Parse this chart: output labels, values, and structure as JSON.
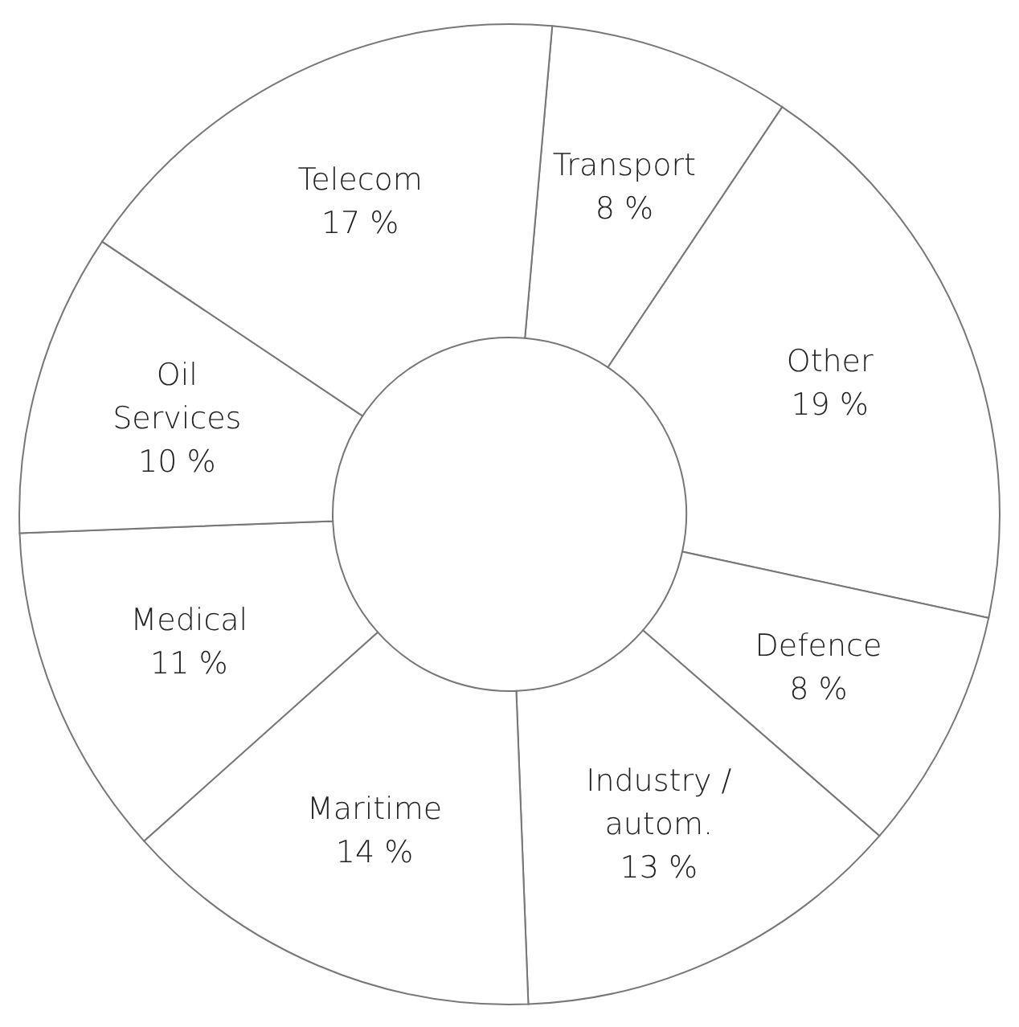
{
  "chart_data": {
    "type": "donut",
    "categories": [
      "Transport",
      "Other",
      "Defence",
      "Industry /\nautom.",
      "Maritime",
      "Medical",
      "Oil\nServices",
      "Telecom"
    ],
    "values": [
      8,
      19,
      8,
      13,
      14,
      11,
      10,
      17
    ],
    "value_labels": [
      "8 %",
      "19 %",
      "8 %",
      "13 %",
      "14 %",
      "11 %",
      "10 %",
      "17 %"
    ],
    "colors": [
      "#ffffff",
      "#ffffff",
      "#ffffff",
      "#ffffff",
      "#ffffff",
      "#ffffff",
      "#ffffff",
      "#ffffff"
    ]
  }
}
